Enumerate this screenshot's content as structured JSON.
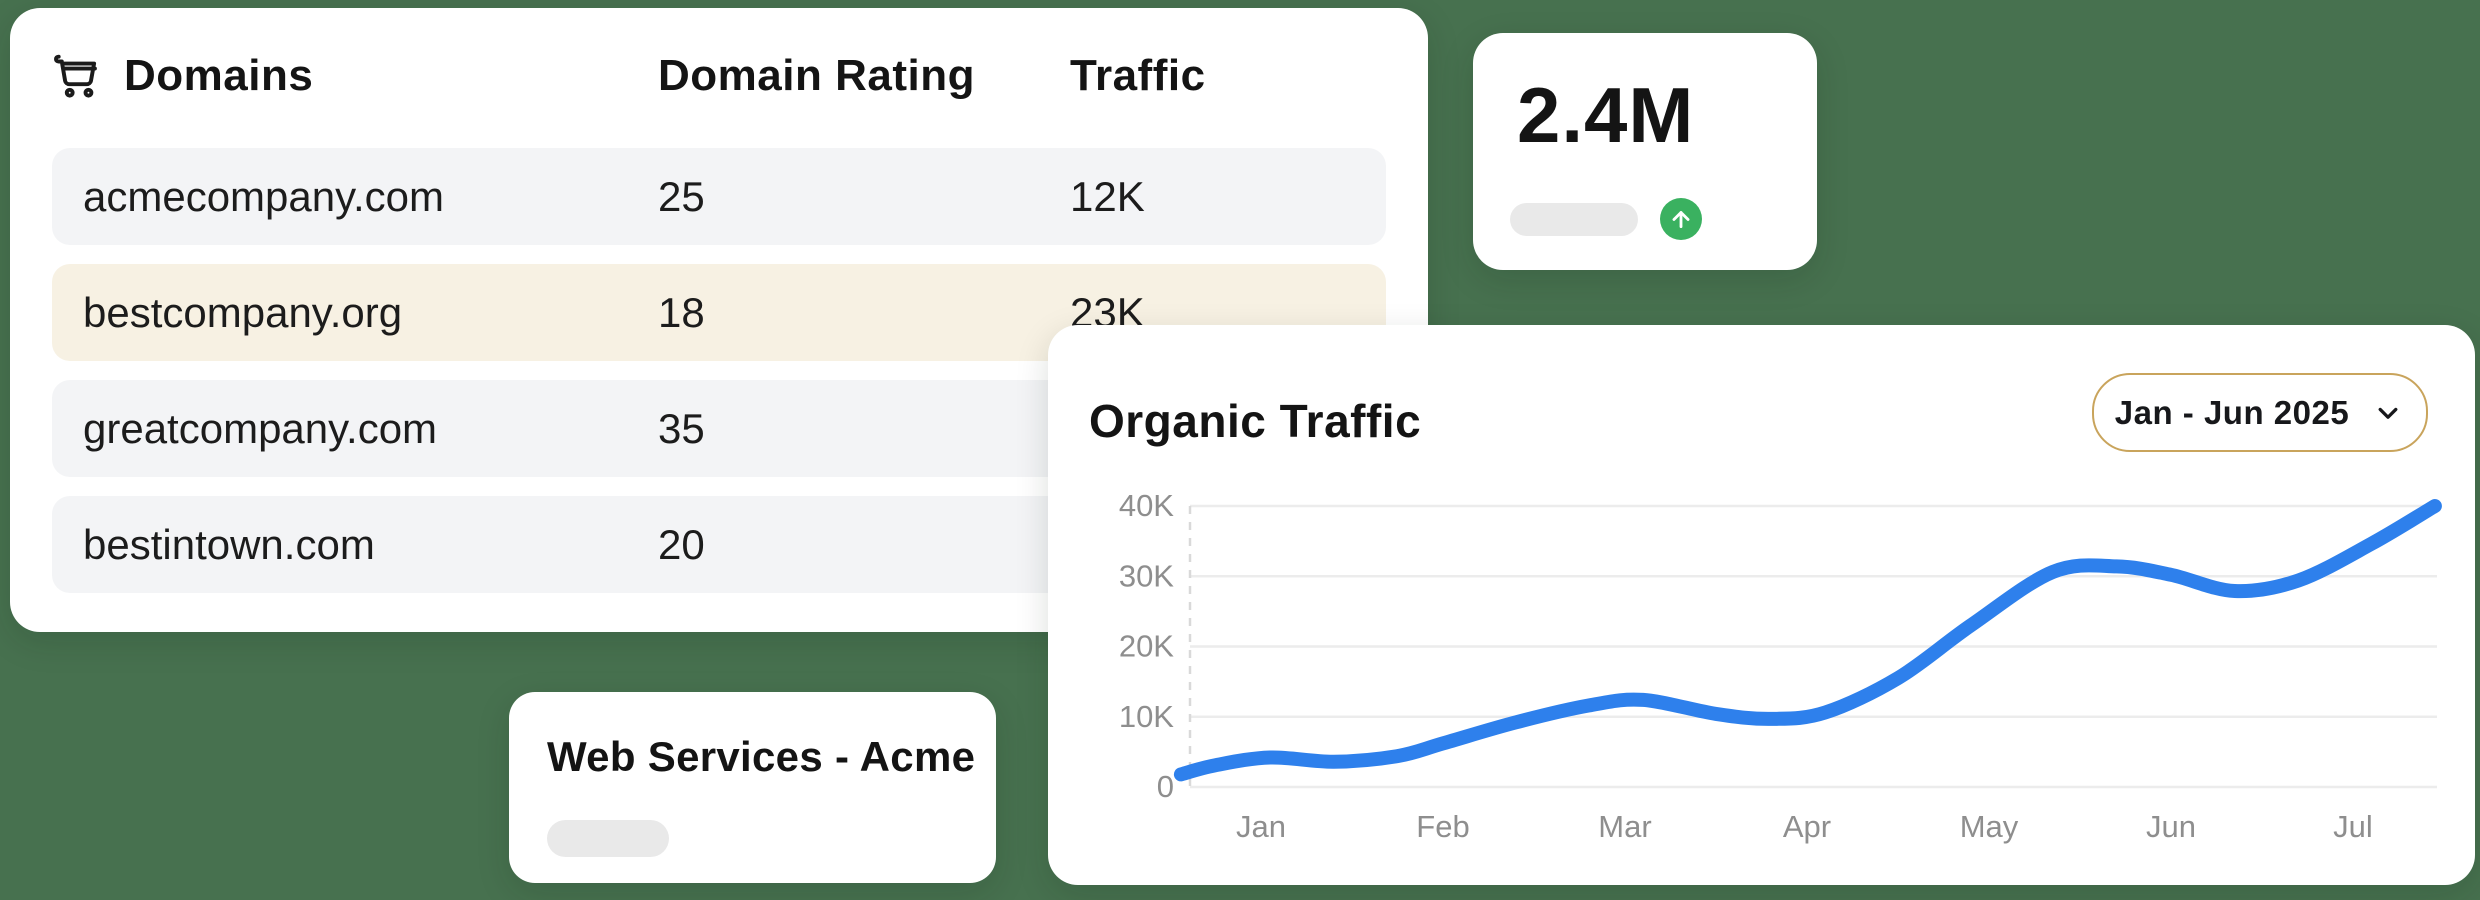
{
  "canvas": {
    "background_color": "#47714F"
  },
  "domains_card": {
    "icon": "cart-icon",
    "title": "Domains",
    "col_domain_rating": "Domain Rating",
    "col_traffic": "Traffic",
    "row_color": "#F3F4F6",
    "highlight_color": "#F7F1E3",
    "rows": [
      {
        "domain": "acmecompany.com",
        "rating": "25",
        "traffic": "12K",
        "highlight": false
      },
      {
        "domain": "bestcompany.org",
        "rating": "18",
        "traffic": "23K",
        "highlight": true
      },
      {
        "domain": "greatcompany.com",
        "rating": "35",
        "traffic": "",
        "highlight": false
      },
      {
        "domain": "bestintown.com",
        "rating": "20",
        "traffic": "",
        "highlight": false
      }
    ]
  },
  "metric_card": {
    "value": "2.4M",
    "trend_icon": "arrow-up-icon",
    "trend_color": "#3AB160"
  },
  "traffic_card": {
    "title": "Organic Traffic",
    "date_range": {
      "label": "Jan - Jun 2025",
      "icon": "chevron-down-icon",
      "border_color": "#C9A45C"
    }
  },
  "project_card": {
    "title": "Web Services - Acme"
  },
  "chart_data": {
    "type": "line",
    "title": "Organic Traffic",
    "x_labels": [
      "Jan",
      "Feb",
      "Mar",
      "Apr",
      "May",
      "Jun",
      "Jul"
    ],
    "y_tick_labels": [
      "0",
      "10K",
      "20K",
      "30K",
      "40K"
    ],
    "ylim": [
      0,
      40000
    ],
    "grid": true,
    "legend": false,
    "axis_color": "#8E8E8E",
    "gridline_color": "#ECECEC",
    "dashed_axis_color": "#D9D9D9",
    "series": [
      {
        "name": "Organic Traffic",
        "color": "#2E80EC",
        "points": [
          [
            -0.44,
            1800
          ],
          [
            -0.25,
            3100
          ],
          [
            0.05,
            4200
          ],
          [
            0.4,
            3600
          ],
          [
            0.75,
            4400
          ],
          [
            1.0,
            6200
          ],
          [
            1.4,
            9200
          ],
          [
            1.8,
            11600
          ],
          [
            2.1,
            12400
          ],
          [
            2.5,
            10400
          ],
          [
            2.8,
            9700
          ],
          [
            3.1,
            10600
          ],
          [
            3.5,
            15500
          ],
          [
            3.9,
            23000
          ],
          [
            4.35,
            30600
          ],
          [
            4.7,
            31400
          ],
          [
            5.0,
            30200
          ],
          [
            5.35,
            27900
          ],
          [
            5.7,
            29400
          ],
          [
            6.1,
            34600
          ],
          [
            6.45,
            40000
          ]
        ]
      }
    ]
  }
}
